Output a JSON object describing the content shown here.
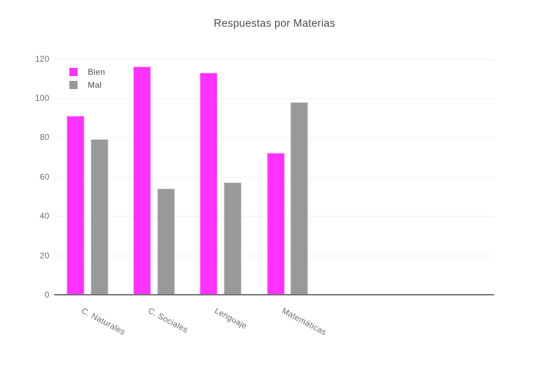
{
  "chart_data": {
    "type": "bar",
    "title": "Respuestas por Materias",
    "categories": [
      "C. Naturales",
      "C. Sociales",
      "Lenguaje",
      "Matemáticas"
    ],
    "series": [
      {
        "name": "Bien",
        "color": "#ff33ff",
        "values": [
          91,
          116,
          113,
          72
        ]
      },
      {
        "name": "Mal",
        "color": "#999999",
        "values": [
          79,
          54,
          57,
          98
        ]
      }
    ],
    "xlabel": "",
    "ylabel": "",
    "ylim": [
      0,
      120
    ],
    "yticks": [
      0,
      20,
      40,
      60,
      80,
      100,
      120
    ],
    "grid": true,
    "legend_position": "top-left",
    "background": "#ffffff"
  }
}
